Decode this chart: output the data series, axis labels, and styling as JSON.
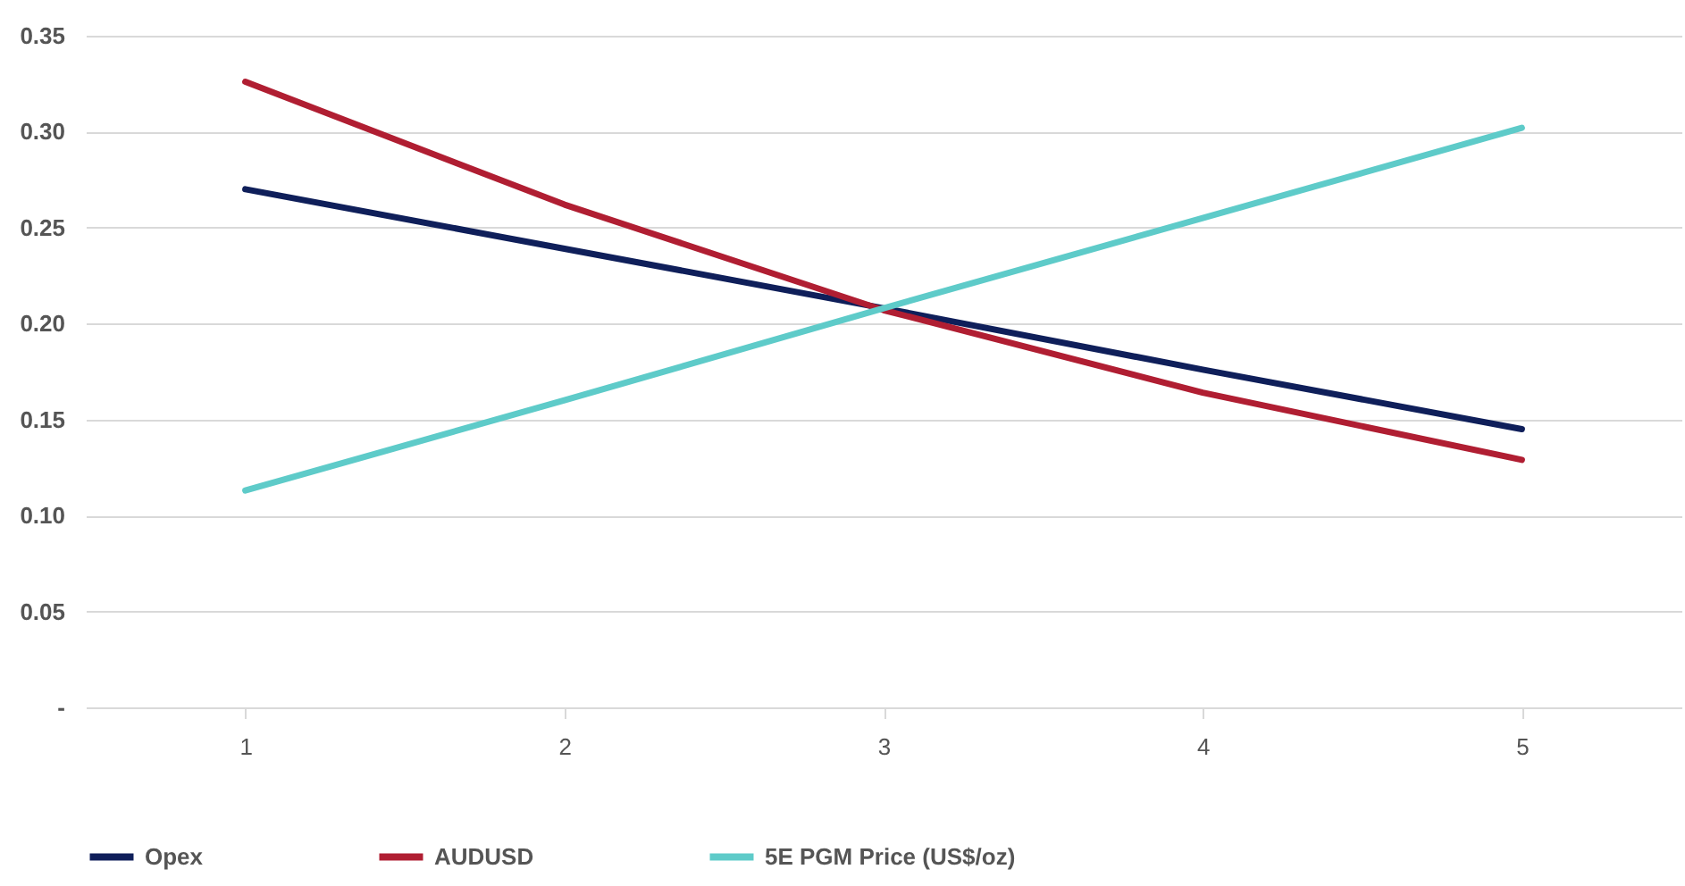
{
  "chart_data": {
    "type": "line",
    "categories": [
      "1",
      "2",
      "3",
      "4",
      "5"
    ],
    "series": [
      {
        "name": "Opex",
        "color": "#0f1f5a",
        "values": [
          0.27,
          0.239,
          0.208,
          0.176,
          0.145
        ]
      },
      {
        "name": "AUDUSD",
        "color": "#b01e32",
        "values": [
          0.326,
          0.262,
          0.207,
          0.164,
          0.129
        ]
      },
      {
        "name": "5E PGM Price (US$/oz)",
        "color": "#5ecbc9",
        "values": [
          0.113,
          0.16,
          0.208,
          0.255,
          0.302
        ]
      }
    ],
    "ylim": [
      0,
      0.35
    ],
    "yticks": [
      {
        "value": 0,
        "label": "-"
      },
      0.05,
      {
        "value": 0.1,
        "label": "0.10"
      },
      0.15,
      {
        "value": 0.2,
        "label": "0.20"
      },
      0.25,
      {
        "value": 0.3,
        "label": "0.30"
      },
      0.35
    ],
    "grid": "y",
    "legend": "bottom",
    "marker": "none",
    "line_style": "solid"
  }
}
